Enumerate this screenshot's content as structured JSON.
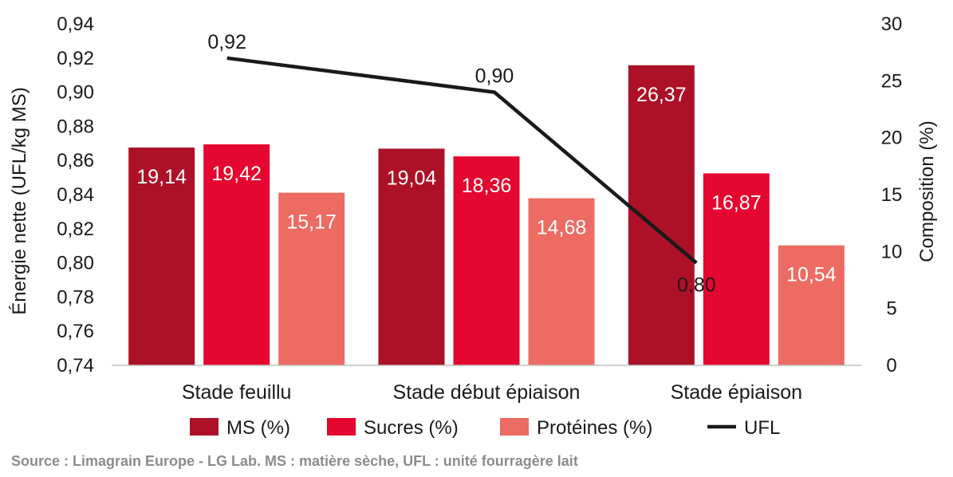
{
  "chart_data": {
    "type": "bar",
    "categories": [
      "Stade feuillu",
      "Stade début épiaison",
      "Stade épiaison"
    ],
    "series": [
      {
        "name": "MS (%)",
        "axis": "right",
        "color": "#ad1127",
        "values": [
          19.14,
          19.04,
          26.37
        ],
        "labels": [
          "19,14",
          "19,04",
          "26,37"
        ]
      },
      {
        "name": "Sucres (%)",
        "axis": "right",
        "color": "#e4072f",
        "values": [
          19.42,
          18.36,
          16.87
        ],
        "labels": [
          "19,42",
          "18,36",
          "16,87"
        ]
      },
      {
        "name": "Protéines (%)",
        "axis": "right",
        "color": "#ec6b62",
        "values": [
          15.17,
          14.68,
          10.54
        ],
        "labels": [
          "15,17",
          "14,68",
          "10,54"
        ]
      }
    ],
    "line_series": {
      "name": "UFL",
      "axis": "left",
      "color": "#1a1a1a",
      "values": [
        0.92,
        0.9,
        0.8
      ],
      "labels": [
        "0,92",
        "0,90",
        "0,80"
      ]
    },
    "y_left": {
      "label": "Énergie nette (UFL/kg MS)",
      "ylim": [
        0.74,
        0.94
      ],
      "ticks": [
        0.74,
        0.76,
        0.78,
        0.8,
        0.82,
        0.84,
        0.86,
        0.88,
        0.9,
        0.92,
        0.94
      ],
      "tick_labels": [
        "0,74",
        "0,76",
        "0,78",
        "0,80",
        "0,82",
        "0,84",
        "0,86",
        "0,88",
        "0,90",
        "0,92",
        "0,94"
      ]
    },
    "y_right": {
      "label": "Composition (%)",
      "ylim": [
        0,
        30
      ],
      "ticks": [
        0,
        5,
        10,
        15,
        20,
        25,
        30
      ],
      "tick_labels": [
        "0",
        "5",
        "10",
        "15",
        "20",
        "25",
        "30"
      ]
    },
    "legend": {
      "position": "bottom",
      "entries": [
        "MS (%)",
        "Sucres (%)",
        "Protéines (%)",
        "UFL"
      ]
    },
    "grid": false
  },
  "source": "Source : Limagrain Europe - LG Lab. MS : matière sèche,  UFL : unité fourragère lait"
}
